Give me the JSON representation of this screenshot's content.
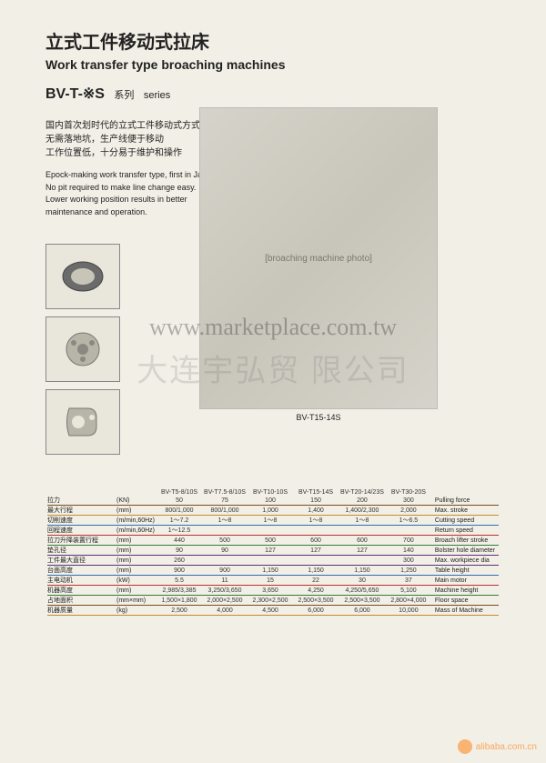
{
  "title_cn": "立式工件移动式拉床",
  "title_en": "Work transfer type broaching machines",
  "series_prefix": "BV-T-※S",
  "series_cn": "系列",
  "series_en": "series",
  "desc_cn_1": "国内首次划时代的立式工件移动式方式",
  "desc_cn_2": "无需落地坑，生产线便于移动",
  "desc_cn_3": "工作位置低，十分易于维护和操作",
  "desc_en_1": "Epock-making work transfer type, first in Japan.",
  "desc_en_2": "No pit required to make line change easy.",
  "desc_en_3": "Lower working position results in better",
  "desc_en_4": "maintenance and operation.",
  "machine_model": "BV-T15-14S",
  "machine_placeholder_text": "[broaching machine photo]",
  "watermark_url": "www.marketplace.com.tw",
  "watermark_cn": "大连宇弘贸   限公司",
  "watermark_site": "alibaba.com.cn",
  "columns": [
    "BV-T5-8/10S",
    "BV-T7.5-8/10S",
    "BV-T10-10S",
    "BV-T15-14S",
    "BV-T20-14/23S",
    "BV-T30-20S"
  ],
  "rule_colors": [
    "#7d4b1e",
    "#c58b2c",
    "#2d6fb5",
    "#bb2e2e",
    "#2f7e3a",
    "#5b2f7e",
    "#5b2f7e",
    "#2d6fb5",
    "#bb2e2e",
    "#2f7e3a",
    "#7d4b1e",
    "#c58b2c",
    "#2d6fb5"
  ],
  "rows": [
    {
      "cn": "拉力",
      "unit": "(KN)",
      "en": "Pulling force",
      "v": [
        "50",
        "75",
        "100",
        "150",
        "200",
        "300"
      ]
    },
    {
      "cn": "最大行程",
      "unit": "(mm)",
      "en": "Max. stroke",
      "v": [
        "800/1,000",
        "800/1,000",
        "1,000",
        "1,400",
        "1,400/2,300",
        "2,000"
      ]
    },
    {
      "cn": "切削速度",
      "unit": "(m/min,60Hz)",
      "en": "Cutting speed",
      "v": [
        "1～7.2",
        "1～8",
        "1～8",
        "1～8",
        "1～8",
        "1～6.5"
      ]
    },
    {
      "cn": "回程速度",
      "unit": "(m/min,60Hz)",
      "en": "Return speed",
      "v": [
        "1～12.5",
        "",
        "",
        "",
        "",
        ""
      ]
    },
    {
      "cn": "拉刀升降装置行程",
      "unit": "(mm)",
      "en": "Broach lifter stroke",
      "v": [
        "440",
        "500",
        "500",
        "600",
        "600",
        "700"
      ]
    },
    {
      "cn": "垫孔径",
      "unit": "(mm)",
      "en": "Bolster hole diameter",
      "v": [
        "90",
        "90",
        "127",
        "127",
        "127",
        "140"
      ]
    },
    {
      "cn": "工件最大直径",
      "unit": "(mm)",
      "en": "Max. workpiece dia",
      "v": [
        "260",
        "",
        "",
        "",
        "",
        "300"
      ]
    },
    {
      "cn": "台面高度",
      "unit": "(mm)",
      "en": "Table height",
      "v": [
        "900",
        "900",
        "1,150",
        "1,150",
        "1,150",
        "1,250"
      ]
    },
    {
      "cn": "主电动机",
      "unit": "(kW)",
      "en": "Main motor",
      "v": [
        "5.5",
        "11",
        "15",
        "22",
        "30",
        "37"
      ]
    },
    {
      "cn": "机器高度",
      "unit": "(mm)",
      "en": "Machine height",
      "v": [
        "2,985/3,385",
        "3,250/3,650",
        "3,650",
        "4,250",
        "4,250/5,650",
        "5,100"
      ]
    },
    {
      "cn": "占地面积",
      "unit": "(mm×mm)",
      "en": "Floor space",
      "v": [
        "1,500×1,800",
        "2,000×2,500",
        "2,300×2,500",
        "2,500×3,500",
        "2,500×3,500",
        "2,800×4,000"
      ]
    },
    {
      "cn": "机器质量",
      "unit": "(kg)",
      "en": "Mass of Machine",
      "v": [
        "2,500",
        "4,000",
        "4,500",
        "6,000",
        "6,000",
        "10,000"
      ]
    }
  ]
}
